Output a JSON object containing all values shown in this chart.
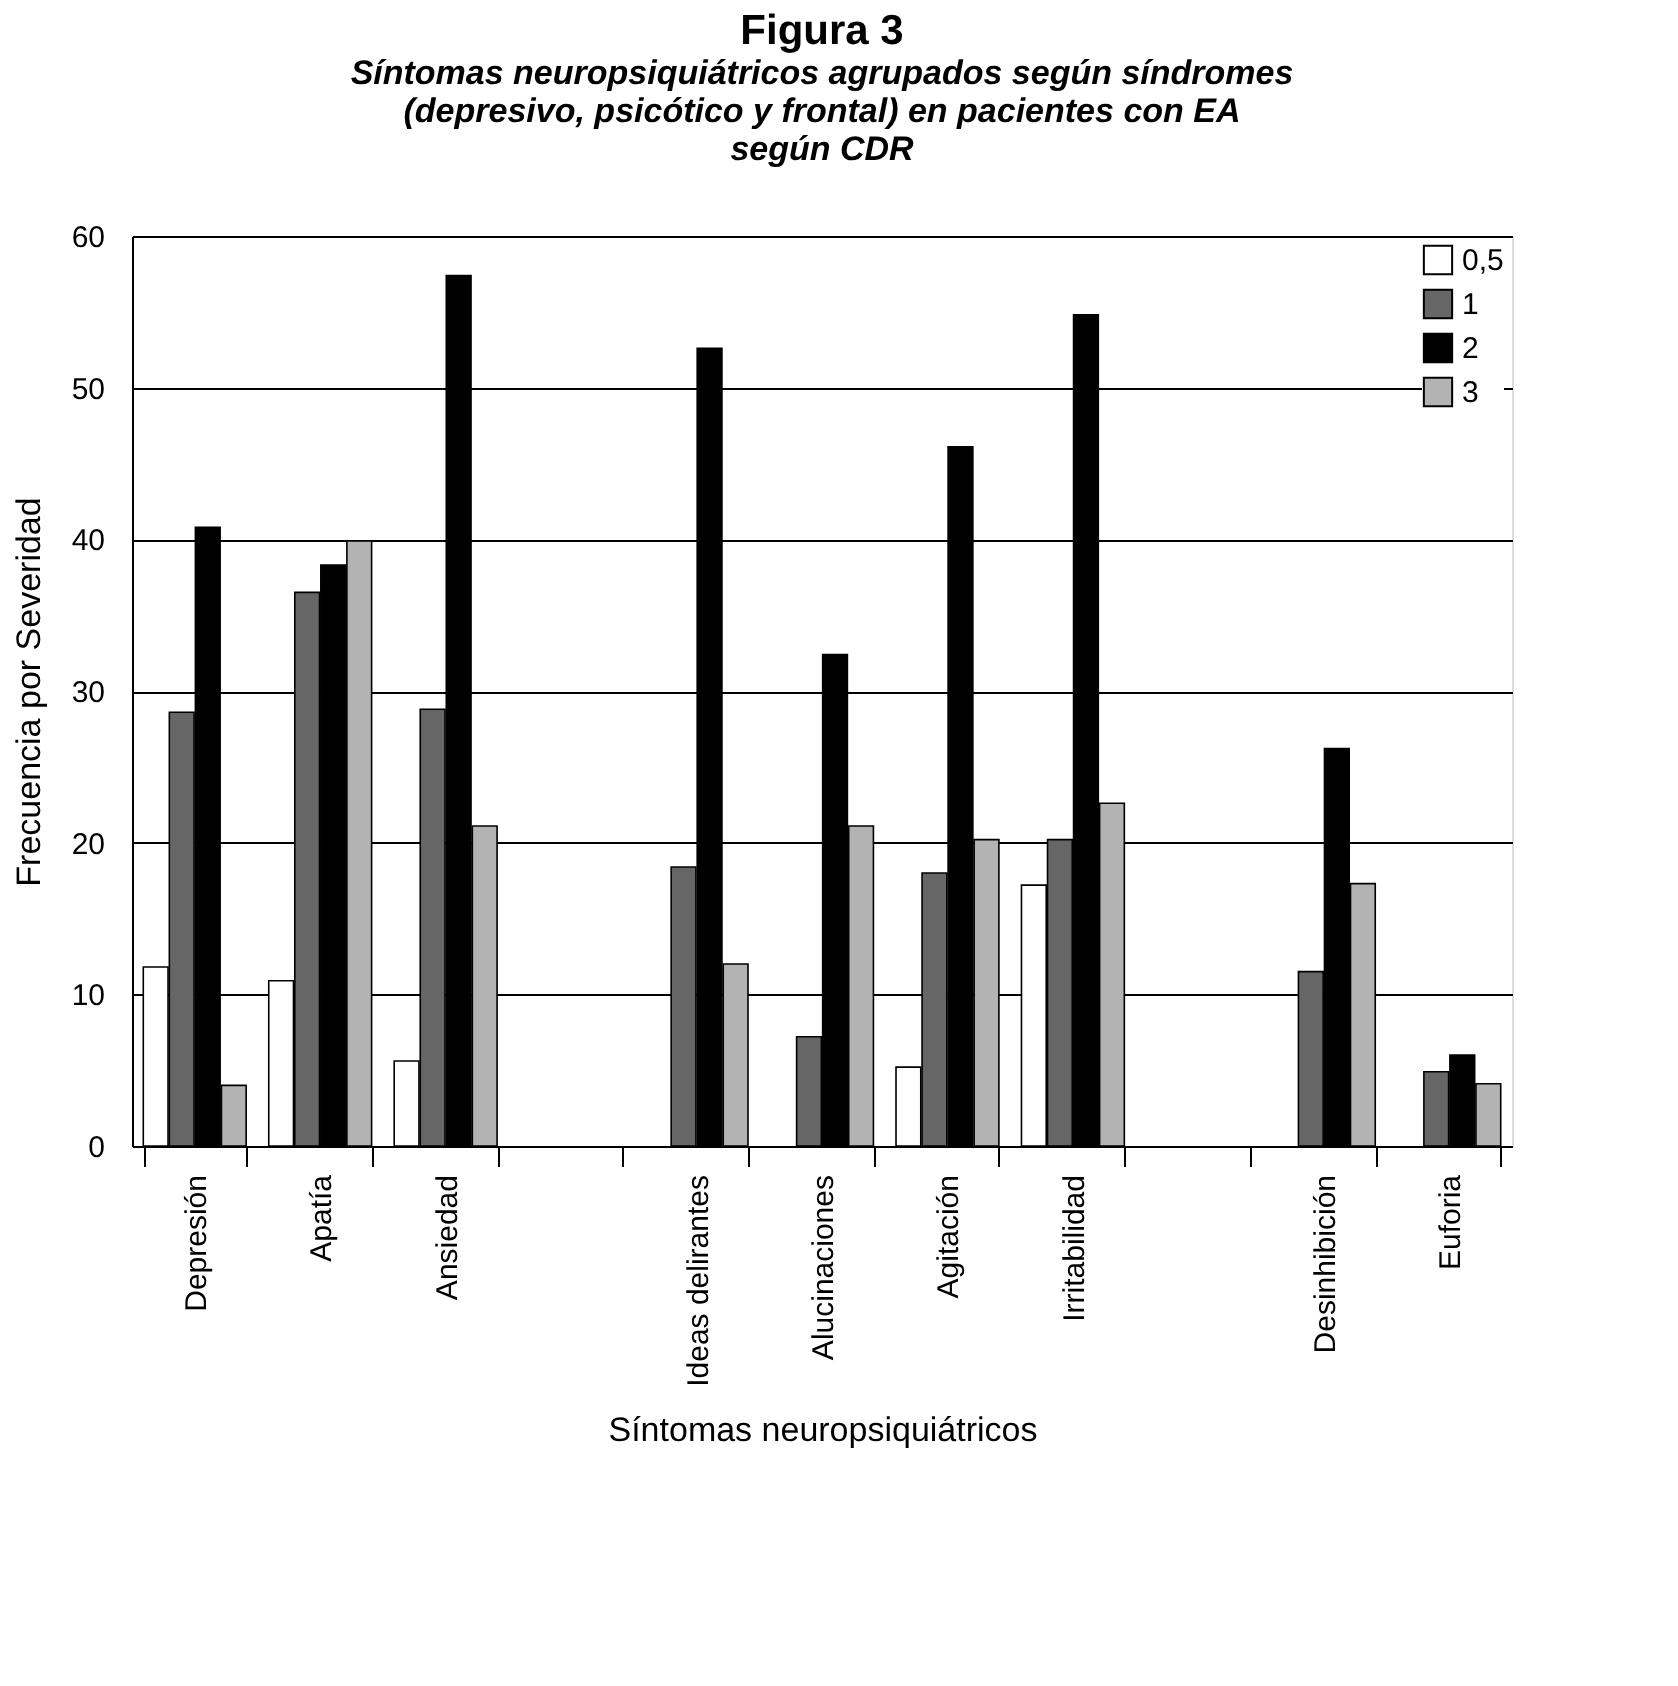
{
  "chart_data": {
    "type": "bar",
    "title": "Figura 3",
    "subtitle": "Síntomas neuropsiquiátricos agrupados según síndromes (depresivo, psicótico y frontal) en pacientes con EA según CDR",
    "xlabel": "Síntomas neuropsiquiátricos",
    "ylabel": "Frecuencia por Severidad",
    "categories": [
      "Depresión",
      "Apatía",
      "Ansiedad",
      null,
      "Ideas delirantes",
      "Alucinaciones",
      "Agitación",
      "Irritabilidad",
      null,
      "Desinhibición",
      "Euforia"
    ],
    "series": [
      {
        "name": "0,5",
        "color": "#ffffff",
        "values": [
          11.8,
          10.9,
          5.6,
          null,
          null,
          null,
          5.2,
          17.2,
          null,
          null,
          null
        ]
      },
      {
        "name": "1",
        "color": "#666666",
        "values": [
          28.6,
          36.5,
          28.8,
          null,
          18.4,
          7.2,
          18.0,
          20.2,
          null,
          11.5,
          4.9
        ]
      },
      {
        "name": "2",
        "color": "#000000",
        "values": [
          40.8,
          38.3,
          57.4,
          null,
          52.6,
          32.4,
          46.1,
          54.8,
          null,
          26.2,
          6.0
        ]
      },
      {
        "name": "3",
        "color": "#b3b3b3",
        "values": [
          4.0,
          39.9,
          21.1,
          null,
          12.0,
          21.1,
          20.2,
          22.6,
          null,
          17.3,
          4.1
        ]
      }
    ],
    "ylim": [
      0,
      60
    ],
    "yticks": [
      0,
      10,
      20,
      30,
      40,
      50,
      60
    ],
    "grid": "y",
    "legend": "top right"
  }
}
